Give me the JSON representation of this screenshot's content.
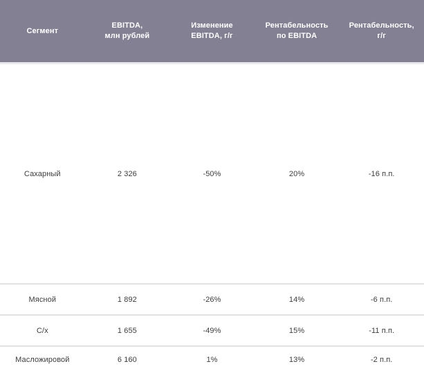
{
  "colors": {
    "header_bg": "#838093",
    "header_text": "#ffffff",
    "body_text": "#3d3d3d",
    "divider": "#e2e2e2",
    "header_shadow": "#e9e9f0"
  },
  "table": {
    "header": [
      {
        "label": "Сегмент"
      },
      {
        "label": "EBITDA,\nмлн рублей"
      },
      {
        "label": "Изменение\nEBITDA, г/г"
      },
      {
        "label": "Рентабельность\nпо EBITDA"
      },
      {
        "label": "Рентабельность,\nг/г"
      }
    ],
    "rows": [
      {
        "cells": [
          "Сахарный",
          "2 326",
          "-50%",
          "20%",
          "-16 п.п."
        ]
      },
      {
        "cells": [
          "Мясной",
          "1 892",
          "-26%",
          "14%",
          "-6 п.п."
        ]
      },
      {
        "cells": [
          "С/х",
          "1 655",
          "-49%",
          "15%",
          "-11 п.п."
        ]
      },
      {
        "cells": [
          "Масложировой",
          "6 160",
          "1%",
          "13%",
          "-2 п.п."
        ]
      }
    ]
  },
  "chart_data": {
    "type": "table",
    "title": "",
    "columns": [
      "Сегмент",
      "EBITDA, млн рублей",
      "Изменение EBITDA, г/г",
      "Рентабельность по EBITDA",
      "Рентабельность, г/г"
    ],
    "rows": [
      {
        "segment": "Сахарный",
        "ebitda_mln_rub": 2326,
        "ebitda_change_yoy": "-50%",
        "ebitda_margin": "20%",
        "margin_change_yoy": "-16 п.п."
      },
      {
        "segment": "Мясной",
        "ebitda_mln_rub": 1892,
        "ebitda_change_yoy": "-26%",
        "ebitda_margin": "14%",
        "margin_change_yoy": "-6 п.п."
      },
      {
        "segment": "С/х",
        "ebitda_mln_rub": 1655,
        "ebitda_change_yoy": "-49%",
        "ebitda_margin": "15%",
        "margin_change_yoy": "-11 п.п."
      },
      {
        "segment": "Масложировой",
        "ebitda_mln_rub": 6160,
        "ebitda_change_yoy": "1%",
        "ebitda_margin": "13%",
        "margin_change_yoy": "-2 п.п."
      }
    ]
  }
}
